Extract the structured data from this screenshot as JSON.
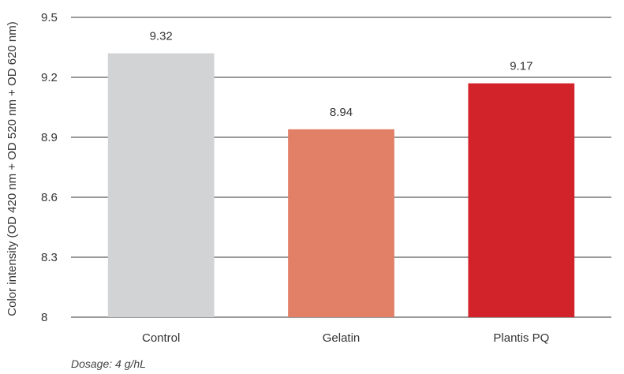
{
  "chart_data": {
    "type": "bar",
    "categories": [
      "Control",
      "Gelatin",
      "Plantis PQ"
    ],
    "values": [
      9.32,
      8.94,
      9.17
    ],
    "data_labels": [
      "9.32",
      "8.94",
      "9.17"
    ],
    "bar_colors": [
      "#d1d3d4",
      "#e27f67",
      "#d2232a"
    ],
    "ylabel": "Color intensity (OD 420 nm + OD 520 nm + OD 620 nm)",
    "xlabel": "",
    "ylim": [
      8,
      9.5
    ],
    "yticks": [
      8,
      8.3,
      8.6,
      8.9,
      9.2,
      9.5
    ],
    "ytick_labels": [
      "8",
      "8.3",
      "8.6",
      "8.9",
      "9.2",
      "9.5"
    ],
    "grid": true,
    "note": "Dosage: 4 g/hL"
  }
}
